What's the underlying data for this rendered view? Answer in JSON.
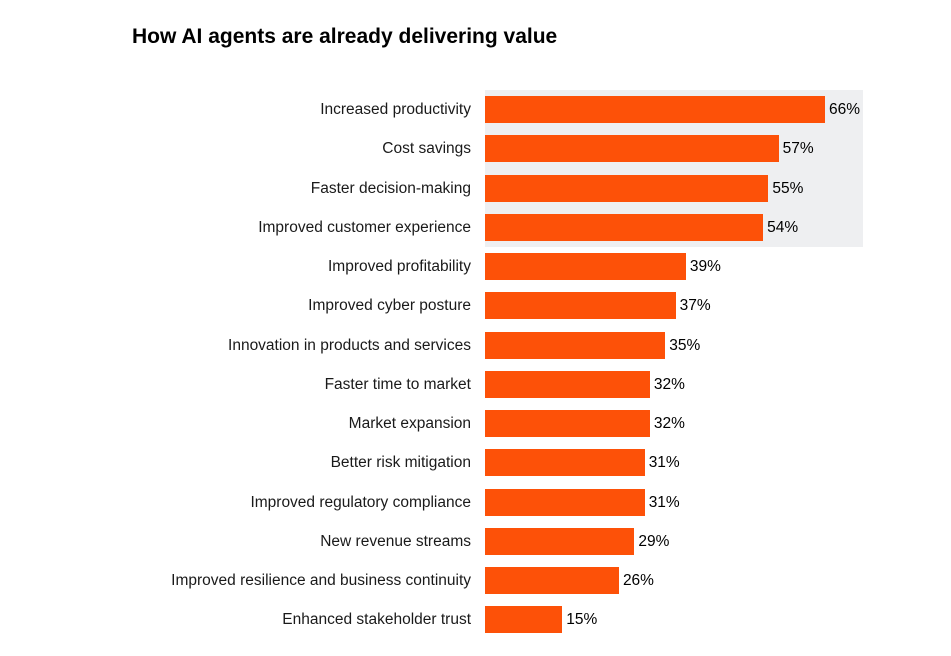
{
  "chart_data": {
    "type": "bar",
    "orientation": "horizontal",
    "title": "How AI agents are already delivering value",
    "categories": [
      "Increased productivity",
      "Cost savings",
      "Faster decision-making",
      "Improved customer experience",
      "Improved profitability",
      "Improved cyber posture",
      "Innovation in products and services",
      "Faster time to market",
      "Market expansion",
      "Better risk mitigation",
      "Improved regulatory compliance",
      "New revenue streams",
      "Improved resilience and business continuity",
      "Enhanced stakeholder trust"
    ],
    "values": [
      66,
      57,
      55,
      54,
      39,
      37,
      35,
      32,
      32,
      31,
      31,
      29,
      26,
      15
    ],
    "value_labels": [
      "66%",
      "57%",
      "55%",
      "54%",
      "39%",
      "37%",
      "35%",
      "32%",
      "32%",
      "31%",
      "31%",
      "29%",
      "26%",
      "15%"
    ],
    "unit": "%",
    "highlighted_top_n": 4,
    "bar_color": "#fd5108",
    "highlight_color": "#eeeff1",
    "grid": false,
    "legend": "none"
  }
}
